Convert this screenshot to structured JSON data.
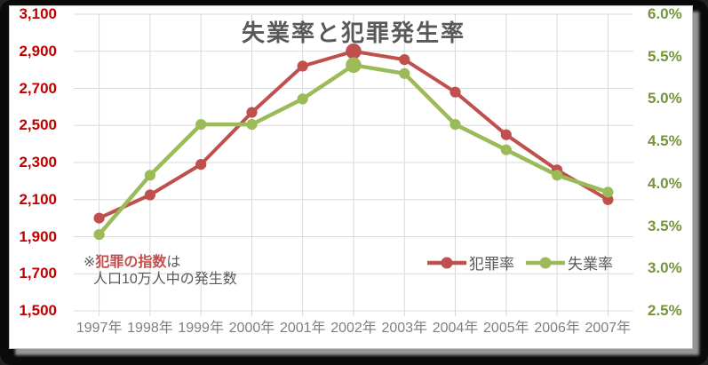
{
  "chart_data": {
    "type": "line",
    "title": "失業率と犯罪発生率",
    "categories": [
      "1997年",
      "1998年",
      "1999年",
      "2000年",
      "2001年",
      "2002年",
      "2003年",
      "2004年",
      "2005年",
      "2006年",
      "2007年"
    ],
    "series": [
      {
        "key": "crime",
        "name": "犯罪率",
        "axis": "left",
        "color": "#C0504D",
        "values": [
          2000,
          2125,
          2290,
          2570,
          2820,
          2900,
          2855,
          2680,
          2450,
          2260,
          2100
        ],
        "emphasis_index": 5
      },
      {
        "key": "unemployment",
        "name": "失業率",
        "axis": "right",
        "color": "#9BBB59",
        "values": [
          3.4,
          4.1,
          4.7,
          4.7,
          5.0,
          5.4,
          5.3,
          4.7,
          4.4,
          4.1,
          3.9
        ],
        "emphasis_index": 5
      }
    ],
    "left_axis": {
      "min": 1500,
      "max": 3100,
      "step": 200,
      "color": "#C00000",
      "ticks": [
        "3,100",
        "2,900",
        "2,700",
        "2,500",
        "2,300",
        "2,100",
        "1,900",
        "1,700",
        "1,500"
      ]
    },
    "right_axis": {
      "min": 2.5,
      "max": 6.0,
      "step": 0.5,
      "color": "#77933C",
      "ticks": [
        "6.0%",
        "5.5%",
        "5.0%",
        "4.5%",
        "4.0%",
        "3.5%",
        "3.0%",
        "2.5%"
      ]
    },
    "x_axis": {
      "color": "#7F7F7F"
    },
    "grid": true,
    "grid_color": "#D9D9D9",
    "legend_position": "inside-bottom-center"
  },
  "annotation": {
    "prefix": "※",
    "highlight": "犯罪の指数",
    "suffix": "は",
    "line2": "人口10万人中の発生数",
    "highlight_color": "#C0504D"
  }
}
